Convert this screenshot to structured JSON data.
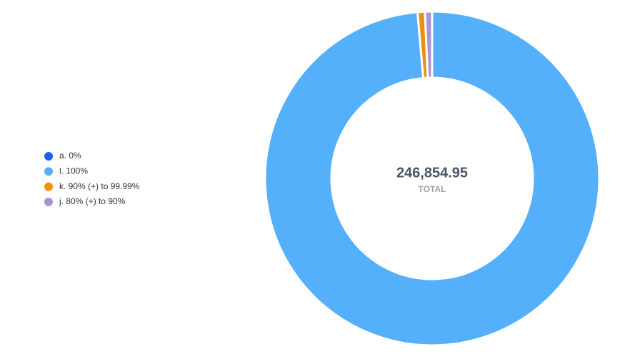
{
  "chart_data": {
    "type": "donut",
    "categories": [
      "a. 0%",
      "l. 100%",
      "k. 90% (+) to 99.99%",
      "j. 80% (+) to 90%"
    ],
    "values": [
      0,
      243400,
      1750,
      1700
    ],
    "colors": [
      "#1b5fe8",
      "#55b0fb",
      "#f0900a",
      "#ab92d3"
    ],
    "center_value": "246,854.95",
    "center_label": "TOTAL"
  }
}
